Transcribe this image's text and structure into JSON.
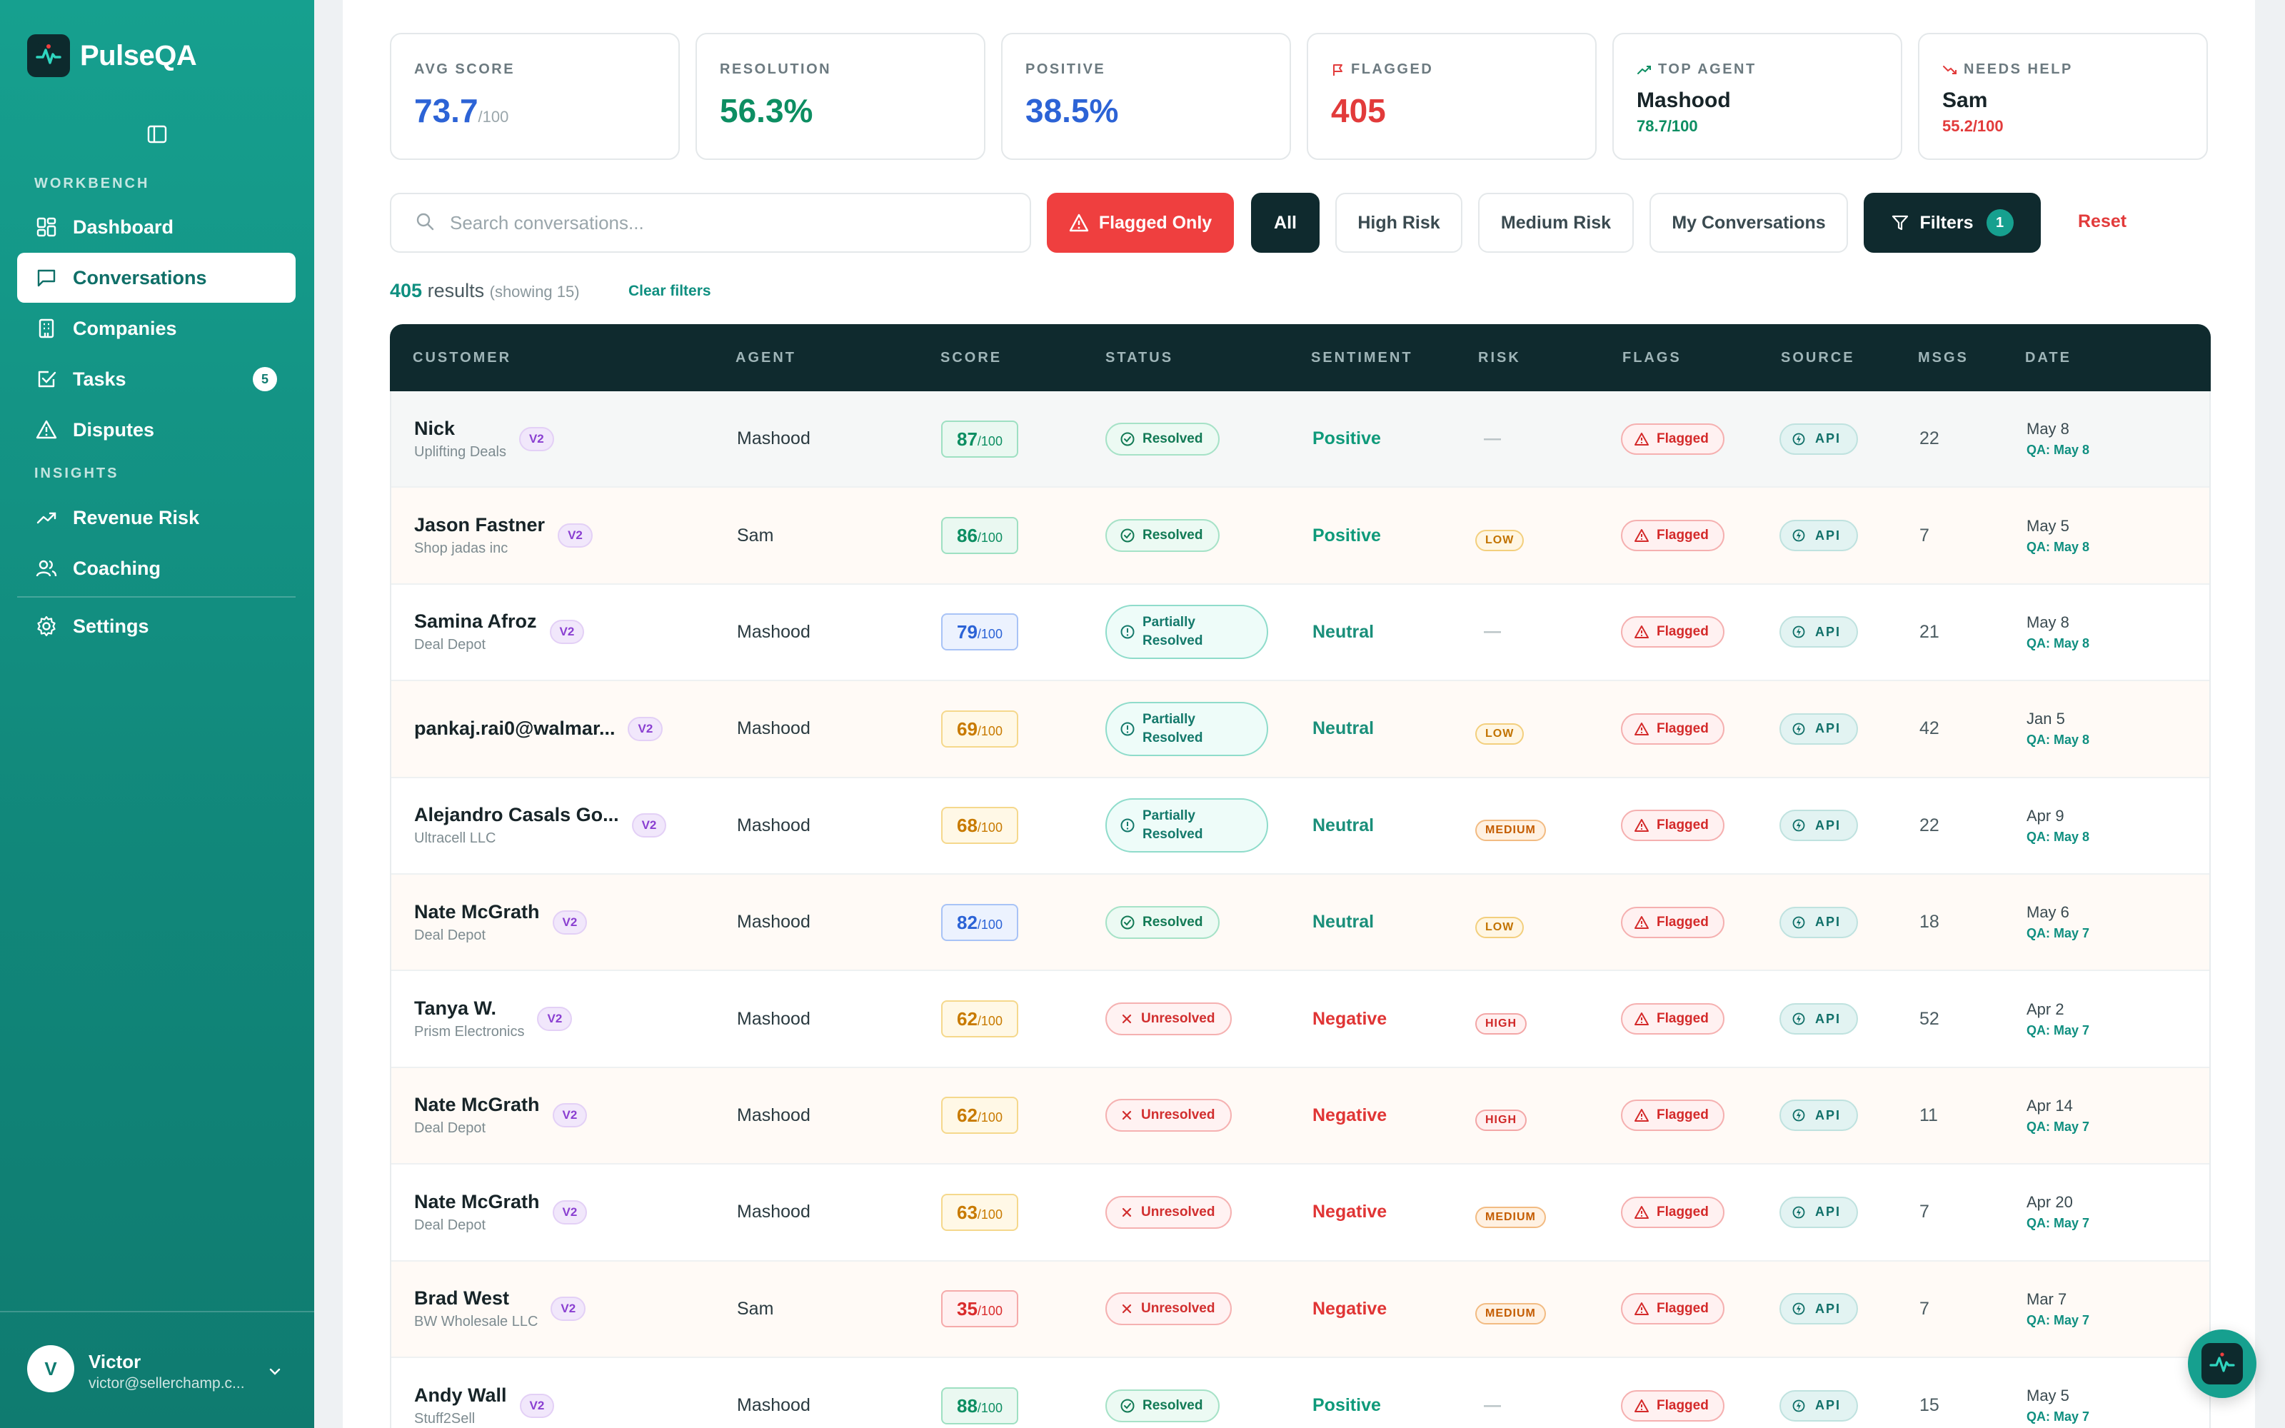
{
  "app": {
    "name": "PulseQA"
  },
  "sidebar": {
    "sections": {
      "workbench": "WORKBENCH",
      "insights": "INSIGHTS"
    },
    "items": [
      {
        "label": "Dashboard",
        "icon": "dashboard-icon"
      },
      {
        "label": "Conversations",
        "icon": "chat-icon",
        "active": true
      },
      {
        "label": "Companies",
        "icon": "building-icon"
      },
      {
        "label": "Tasks",
        "icon": "task-icon",
        "badge": "5"
      },
      {
        "label": "Disputes",
        "icon": "warning-icon"
      },
      {
        "label": "Revenue Risk",
        "icon": "trend-icon"
      },
      {
        "label": "Coaching",
        "icon": "users-icon"
      },
      {
        "label": "Settings",
        "icon": "gear-icon"
      }
    ],
    "user": {
      "initial": "V",
      "name": "Victor",
      "email": "victor@sellerchamp.c..."
    }
  },
  "stats": {
    "avg_score": {
      "label": "AVG SCORE",
      "value": "73.7",
      "suffix": "/100",
      "color": "#2c63d6"
    },
    "resolution": {
      "label": "RESOLUTION",
      "value": "56.3%",
      "color": "#0d8e62"
    },
    "positive": {
      "label": "POSITIVE",
      "value": "38.5%",
      "color": "#2c63d6"
    },
    "flagged": {
      "label": "FLAGGED",
      "value": "405",
      "color": "#e23b3b"
    },
    "top_agent": {
      "label": "TOP AGENT",
      "name": "Mashood",
      "sub": "78.7/100",
      "color": "#0d8e62"
    },
    "needs_help": {
      "label": "NEEDS HELP",
      "name": "Sam",
      "sub": "55.2/100",
      "color": "#e23b3b"
    }
  },
  "toolbar": {
    "search_placeholder": "Search conversations...",
    "flagged_only": "Flagged Only",
    "all": "All",
    "high_risk": "High Risk",
    "medium_risk": "Medium Risk",
    "my_conversations": "My Conversations",
    "filters": "Filters",
    "filters_count": "1",
    "reset": "Reset"
  },
  "results": {
    "count": "405",
    "label": "results",
    "showing": "(showing 15)",
    "clear": "Clear filters"
  },
  "table": {
    "headers": [
      "CUSTOMER",
      "AGENT",
      "SCORE",
      "STATUS",
      "SENTIMENT",
      "RISK",
      "FLAGS",
      "SOURCE",
      "MSGS",
      "DATE"
    ],
    "rows": [
      {
        "name": "Nick",
        "company": "Uplifting Deals",
        "version": "V2",
        "agent": "Mashood",
        "score": "87",
        "score_of": "/100",
        "score_color": "green",
        "status": "Resolved",
        "status_type": "resolved",
        "sentiment": "Positive",
        "sentiment_type": "positive",
        "risk": "—",
        "risk_type": "none",
        "flag": "Flagged",
        "source": "API",
        "msgs": "22",
        "date": "May 8",
        "qa": "QA: May 8"
      },
      {
        "name": "Jason Fastner",
        "company": "Shop jadas inc",
        "version": "V2",
        "agent": "Sam",
        "score": "86",
        "score_of": "/100",
        "score_color": "green",
        "status": "Resolved",
        "status_type": "resolved",
        "sentiment": "Positive",
        "sentiment_type": "positive",
        "risk": "LOW",
        "risk_type": "low",
        "flag": "Flagged",
        "source": "API",
        "msgs": "7",
        "date": "May 5",
        "qa": "QA: May 8"
      },
      {
        "name": "Samina Afroz",
        "company": "Deal Depot",
        "version": "V2",
        "agent": "Mashood",
        "score": "79",
        "score_of": "/100",
        "score_color": "blue",
        "status": "Partially Resolved",
        "status_type": "partial",
        "sentiment": "Neutral",
        "sentiment_type": "neutral",
        "risk": "—",
        "risk_type": "none",
        "flag": "Flagged",
        "source": "API",
        "msgs": "21",
        "date": "May 8",
        "qa": "QA: May 8"
      },
      {
        "name": "pankaj.rai0@walmar...",
        "company": "",
        "version": "V2",
        "agent": "Mashood",
        "score": "69",
        "score_of": "/100",
        "score_color": "yellow",
        "status": "Partially Resolved",
        "status_type": "partial",
        "sentiment": "Neutral",
        "sentiment_type": "neutral",
        "risk": "LOW",
        "risk_type": "low",
        "flag": "Flagged",
        "source": "API",
        "msgs": "42",
        "date": "Jan 5",
        "qa": "QA: May 8"
      },
      {
        "name": "Alejandro Casals Go...",
        "company": "Ultracell LLC",
        "version": "V2",
        "agent": "Mashood",
        "score": "68",
        "score_of": "/100",
        "score_color": "yellow",
        "status": "Partially Resolved",
        "status_type": "partial",
        "sentiment": "Neutral",
        "sentiment_type": "neutral",
        "risk": "MEDIUM",
        "risk_type": "medium",
        "flag": "Flagged",
        "source": "API",
        "msgs": "22",
        "date": "Apr 9",
        "qa": "QA: May 8"
      },
      {
        "name": "Nate McGrath",
        "company": "Deal Depot",
        "version": "V2",
        "agent": "Mashood",
        "score": "82",
        "score_of": "/100",
        "score_color": "blue",
        "status": "Resolved",
        "status_type": "resolved",
        "sentiment": "Neutral",
        "sentiment_type": "neutral",
        "risk": "LOW",
        "risk_type": "low",
        "flag": "Flagged",
        "source": "API",
        "msgs": "18",
        "date": "May 6",
        "qa": "QA: May 7"
      },
      {
        "name": "Tanya W.",
        "company": "Prism Electronics",
        "version": "V2",
        "agent": "Mashood",
        "score": "62",
        "score_of": "/100",
        "score_color": "yellow",
        "status": "Unresolved",
        "status_type": "unresolved",
        "sentiment": "Negative",
        "sentiment_type": "negative",
        "risk": "HIGH",
        "risk_type": "high",
        "flag": "Flagged",
        "source": "API",
        "msgs": "52",
        "date": "Apr 2",
        "qa": "QA: May 7"
      },
      {
        "name": "Nate McGrath",
        "company": "Deal Depot",
        "version": "V2",
        "agent": "Mashood",
        "score": "62",
        "score_of": "/100",
        "score_color": "yellow",
        "status": "Unresolved",
        "status_type": "unresolved",
        "sentiment": "Negative",
        "sentiment_type": "negative",
        "risk": "HIGH",
        "risk_type": "high",
        "flag": "Flagged",
        "source": "API",
        "msgs": "11",
        "date": "Apr 14",
        "qa": "QA: May 7"
      },
      {
        "name": "Nate McGrath",
        "company": "Deal Depot",
        "version": "V2",
        "agent": "Mashood",
        "score": "63",
        "score_of": "/100",
        "score_color": "yellow",
        "status": "Unresolved",
        "status_type": "unresolved",
        "sentiment": "Negative",
        "sentiment_type": "negative",
        "risk": "MEDIUM",
        "risk_type": "medium",
        "flag": "Flagged",
        "source": "API",
        "msgs": "7",
        "date": "Apr 20",
        "qa": "QA: May 7"
      },
      {
        "name": "Brad West",
        "company": "BW Wholesale LLC",
        "version": "V2",
        "agent": "Sam",
        "score": "35",
        "score_of": "/100",
        "score_color": "red",
        "status": "Unresolved",
        "status_type": "unresolved",
        "sentiment": "Negative",
        "sentiment_type": "negative",
        "risk": "MEDIUM",
        "risk_type": "medium",
        "flag": "Flagged",
        "source": "API",
        "msgs": "7",
        "date": "Mar 7",
        "qa": "QA: May 7"
      },
      {
        "name": "Andy Wall",
        "company": "Stuff2Sell",
        "version": "V2",
        "agent": "Mashood",
        "score": "88",
        "score_of": "/100",
        "score_color": "green",
        "status": "Resolved",
        "status_type": "resolved",
        "sentiment": "Positive",
        "sentiment_type": "positive",
        "risk": "—",
        "risk_type": "none",
        "flag": "Flagged",
        "source": "API",
        "msgs": "15",
        "date": "May 5",
        "qa": "QA: May 7"
      }
    ]
  }
}
